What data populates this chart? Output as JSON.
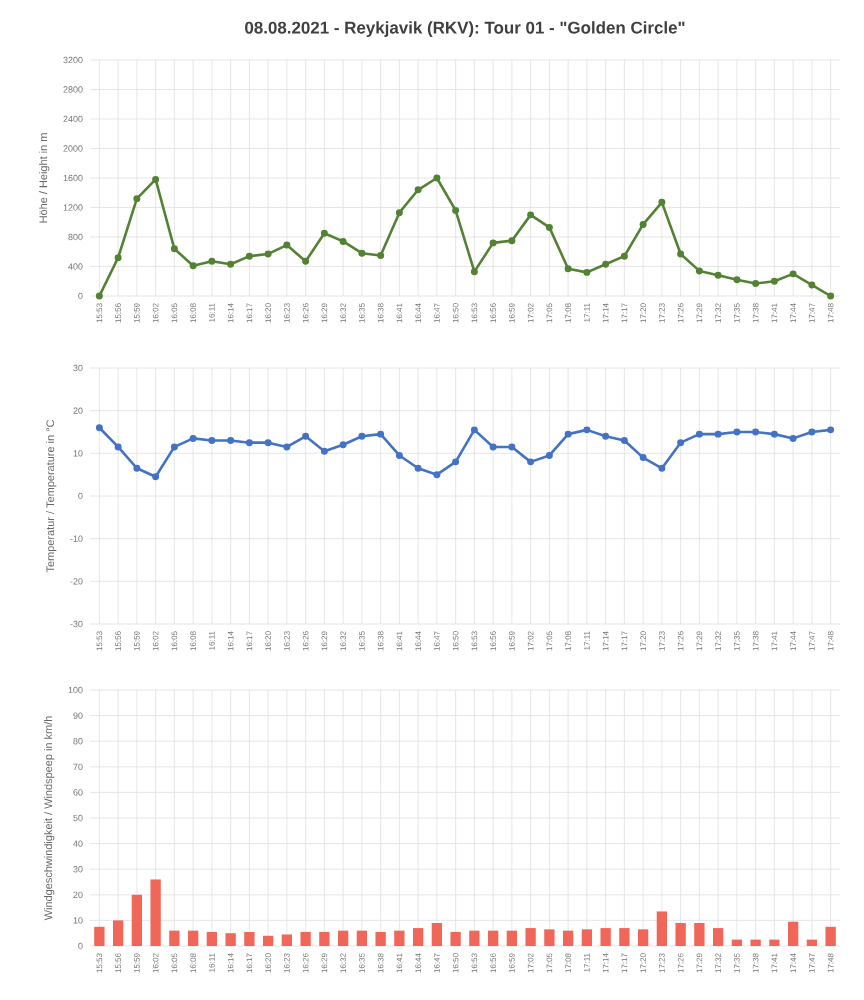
{
  "chart_data": [
    {
      "type": "line",
      "title": "08.08.2021 - Reykjavik (RKV): Tour 01 - \"Golden Circle\"",
      "ylabel": "Höhe / Height in m",
      "color": "#548235",
      "marker": "circle",
      "grid": true,
      "ylim": [
        0,
        3200
      ],
      "yticks": [
        0,
        400,
        800,
        1200,
        1600,
        2000,
        2400,
        2800,
        3200
      ],
      "categories": [
        "15:53",
        "15:56",
        "15:59",
        "16:02",
        "16:05",
        "16:08",
        "16:11",
        "16:14",
        "16:17",
        "16:20",
        "16:23",
        "16:26",
        "16:29",
        "16:32",
        "16:35",
        "16:38",
        "16:41",
        "16:44",
        "16:47",
        "16:50",
        "16:53",
        "16:56",
        "16:59",
        "17:02",
        "17:05",
        "17:08",
        "17:11",
        "17:14",
        "17:17",
        "17:20",
        "17:23",
        "17:26",
        "17:29",
        "17:32",
        "17:35",
        "17:38",
        "17:41",
        "17:44",
        "17:47",
        "17:48"
      ],
      "values": [
        0,
        520,
        1320,
        1580,
        640,
        410,
        470,
        430,
        540,
        570,
        690,
        470,
        850,
        740,
        580,
        550,
        1130,
        1440,
        1600,
        1160,
        330,
        720,
        750,
        1100,
        930,
        370,
        320,
        430,
        540,
        970,
        1270,
        570,
        340,
        280,
        220,
        170,
        200,
        300,
        150,
        0
      ]
    },
    {
      "type": "line",
      "ylabel": "Temperatur / Temperature in °C",
      "color": "#4472c4",
      "marker": "circle",
      "grid": true,
      "ylim": [
        -30,
        30
      ],
      "yticks": [
        -30,
        -20,
        -10,
        0,
        10,
        20,
        30
      ],
      "categories": [
        "15:53",
        "15:56",
        "15:59",
        "16:02",
        "16:05",
        "16:08",
        "16:11",
        "16:14",
        "16:17",
        "16:20",
        "16:23",
        "16:26",
        "16:29",
        "16:32",
        "16:35",
        "16:38",
        "16:41",
        "16:44",
        "16:47",
        "16:50",
        "16:53",
        "16:56",
        "16:59",
        "17:02",
        "17:05",
        "17:08",
        "17:11",
        "17:14",
        "17:17",
        "17:20",
        "17:23",
        "17:26",
        "17:29",
        "17:32",
        "17:35",
        "17:38",
        "17:41",
        "17:44",
        "17:47",
        "17:48"
      ],
      "values": [
        16,
        11.5,
        6.5,
        4.5,
        11.5,
        13.5,
        13,
        13,
        12.5,
        12.5,
        11.5,
        14,
        10.5,
        12,
        14,
        14.5,
        9.5,
        6.5,
        5,
        8,
        15.5,
        11.5,
        11.5,
        8,
        9.5,
        14.5,
        15.5,
        14,
        13,
        9,
        6.5,
        12.5,
        14.5,
        14.5,
        15,
        15,
        14.5,
        13.5,
        15,
        15.5
      ]
    },
    {
      "type": "bar",
      "ylabel": "Windgeschwindigkeit / Windspeep in km/h",
      "color": "#f0675a",
      "grid": true,
      "ylim": [
        0,
        100
      ],
      "yticks": [
        0,
        10,
        20,
        30,
        40,
        50,
        60,
        70,
        80,
        90,
        100
      ],
      "categories": [
        "15:53",
        "15:56",
        "15:59",
        "16:02",
        "16:05",
        "16:08",
        "16:11",
        "16:14",
        "16:17",
        "16:20",
        "16:23",
        "16:26",
        "16:29",
        "16:32",
        "16:35",
        "16:38",
        "16:41",
        "16:44",
        "16:47",
        "16:50",
        "16:53",
        "16:56",
        "16:59",
        "17:02",
        "17:05",
        "17:08",
        "17:11",
        "17:14",
        "17:17",
        "17:20",
        "17:23",
        "17:26",
        "17:29",
        "17:32",
        "17:35",
        "17:38",
        "17:41",
        "17:44",
        "17:47",
        "17:48"
      ],
      "values": [
        7.5,
        10,
        20,
        26,
        6,
        6,
        5.5,
        5,
        5.5,
        4,
        4.5,
        5.5,
        5.5,
        6,
        6,
        5.5,
        6,
        7,
        9,
        5.5,
        6,
        6,
        6,
        7,
        6.5,
        6,
        6.5,
        7,
        7,
        6.5,
        13.5,
        9,
        9,
        7,
        2.5,
        2.5,
        2.5,
        9.5,
        2.5,
        7.5
      ]
    }
  ]
}
